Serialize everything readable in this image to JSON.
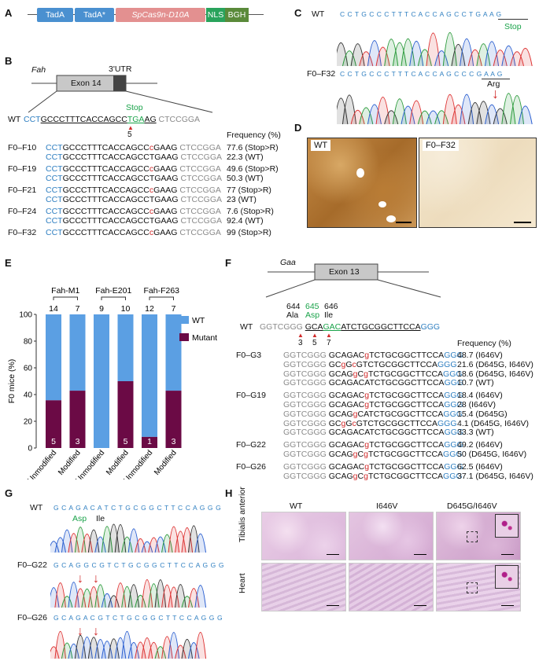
{
  "panels": {
    "A": "A",
    "B": "B",
    "C": "C",
    "D": "D",
    "E": "E",
    "F": "F",
    "G": "G",
    "H": "H"
  },
  "A": {
    "segments": [
      {
        "label": "TadA",
        "color": "#4a90d0",
        "italic": false
      },
      {
        "label": "TadA*",
        "color": "#4a90d0",
        "italic": false
      },
      {
        "label": "SpCas9n-D10A",
        "color": "#e78a8a",
        "italic": true
      },
      {
        "label": "NLS",
        "color": "#29a35c",
        "italic": false
      },
      {
        "label": "BGH",
        "color": "#5a8a3a",
        "italic": false
      }
    ]
  },
  "B": {
    "gene": "Fah",
    "exon": "Exon 14",
    "utr": "3'UTR",
    "stop_label": "Stop",
    "marker": "5",
    "wt_label": "WT",
    "wt_seq": {
      "pre": "CCT",
      "mid": "GCCCTTTCACCAGCCTGA",
      "tga": "TGA",
      "ag": "AG",
      "post": " CTCCGGA"
    },
    "freq_header": "Frequency (%)",
    "rows": [
      {
        "name": "F0–F10",
        "lines": [
          {
            "edit": true,
            "freq": "77.6 (Stop>R)"
          },
          {
            "edit": false,
            "freq": "22.3 (WT)"
          }
        ]
      },
      {
        "name": "F0–F19",
        "lines": [
          {
            "edit": true,
            "freq": "49.6 (Stop>R)"
          },
          {
            "edit": false,
            "freq": "50.3 (WT)"
          }
        ]
      },
      {
        "name": "F0–F21",
        "lines": [
          {
            "edit": true,
            "freq": "77 (Stop>R)"
          },
          {
            "edit": false,
            "freq": "23 (WT)"
          }
        ]
      },
      {
        "name": "F0–F24",
        "lines": [
          {
            "edit": true,
            "freq": "7.6 (Stop>R)"
          },
          {
            "edit": false,
            "freq": "92.4 (WT)"
          }
        ]
      },
      {
        "name": "F0–F32",
        "lines": [
          {
            "edit": true,
            "freq": "99 (Stop>R)"
          }
        ]
      }
    ]
  },
  "C": {
    "wt_label": "WT",
    "wt_seq": "C C T G C C C T T T C A C C A G C C T G A A G",
    "stop": "Stop",
    "mut_label": "F0–F32",
    "mut_seq": "C C T G C C C T T T C A C C A G C C C G A A G",
    "arg": "Arg"
  },
  "D": {
    "left": "WT",
    "right": "F0–F32"
  },
  "E": {
    "groups": [
      "Fah-M1",
      "Fah-E201",
      "Fah-F263"
    ],
    "ylabel": "F0 mice (%)",
    "yticks": [
      "0",
      "20",
      "40",
      "60",
      "80",
      "100"
    ],
    "legend": [
      {
        "label": "WT",
        "color": "#5b9fe3"
      },
      {
        "label": "Mutant",
        "color": "#6b0a45"
      }
    ],
    "bars": [
      {
        "cat": "Unmodified",
        "total": "14",
        "mutant_n": "5",
        "mutant_pct": 35.7
      },
      {
        "cat": "Modified",
        "total": "7",
        "mutant_n": "3",
        "mutant_pct": 42.9
      },
      {
        "cat": "Unmodified",
        "total": "9",
        "mutant_n": "",
        "mutant_pct": 0
      },
      {
        "cat": "Modified",
        "total": "10",
        "mutant_n": "5",
        "mutant_pct": 50
      },
      {
        "cat": "Unmodified",
        "total": "12",
        "mutant_n": "1",
        "mutant_pct": 8.3
      },
      {
        "cat": "Modified",
        "total": "7",
        "mutant_n": "3",
        "mutant_pct": 42.9
      }
    ]
  },
  "F": {
    "gene": "Gaa",
    "exon": "Exon 13",
    "codons": [
      {
        "num": "644",
        "aa": "Ala"
      },
      {
        "num": "645",
        "aa": "Asp"
      },
      {
        "num": "646",
        "aa": "Ile"
      }
    ],
    "markers": [
      "3",
      "5",
      "7"
    ],
    "wt_label": "WT",
    "freq_header": "Frequency (%)",
    "groups": [
      {
        "name": "F0–G3",
        "freqs": [
          "48.7 (I646V)",
          "21.6 (D645G, I646V)",
          "18.6 (D645G, I646V)",
          "10.7 (WT)"
        ]
      },
      {
        "name": "F0–G19",
        "freqs": [
          "18.4 (I646V)",
          "28 (I646V)",
          "15.4 (D645G)",
          "4.1 (D645G, I646V)",
          "33.3 (WT)"
        ]
      },
      {
        "name": "F0–G22",
        "freqs": [
          "49.2 (I646V)",
          "50 (D645G, I646V)"
        ]
      },
      {
        "name": "F0–G26",
        "freqs": [
          "62.5 (I646V)",
          "37.1 (D645G, I646V)"
        ]
      }
    ]
  },
  "G": {
    "wt_label": "WT",
    "wt_seq": "G C A G A C A T C T G C G G C T T C C A G G G",
    "asp": "Asp",
    "ile": "Ile",
    "g22_label": "F0–G22",
    "g22_seq": "G C A G G C G T C T G C G G C T T C C A G G G",
    "g26_label": "F0–G26",
    "g26_seq": "G C A G A C G T C T G C G G C T T C C A G G G"
  },
  "H": {
    "cols": [
      "WT",
      "I646V",
      "D645G/I646V"
    ],
    "rows": [
      "Tibialis anterior",
      "Heart"
    ]
  }
}
